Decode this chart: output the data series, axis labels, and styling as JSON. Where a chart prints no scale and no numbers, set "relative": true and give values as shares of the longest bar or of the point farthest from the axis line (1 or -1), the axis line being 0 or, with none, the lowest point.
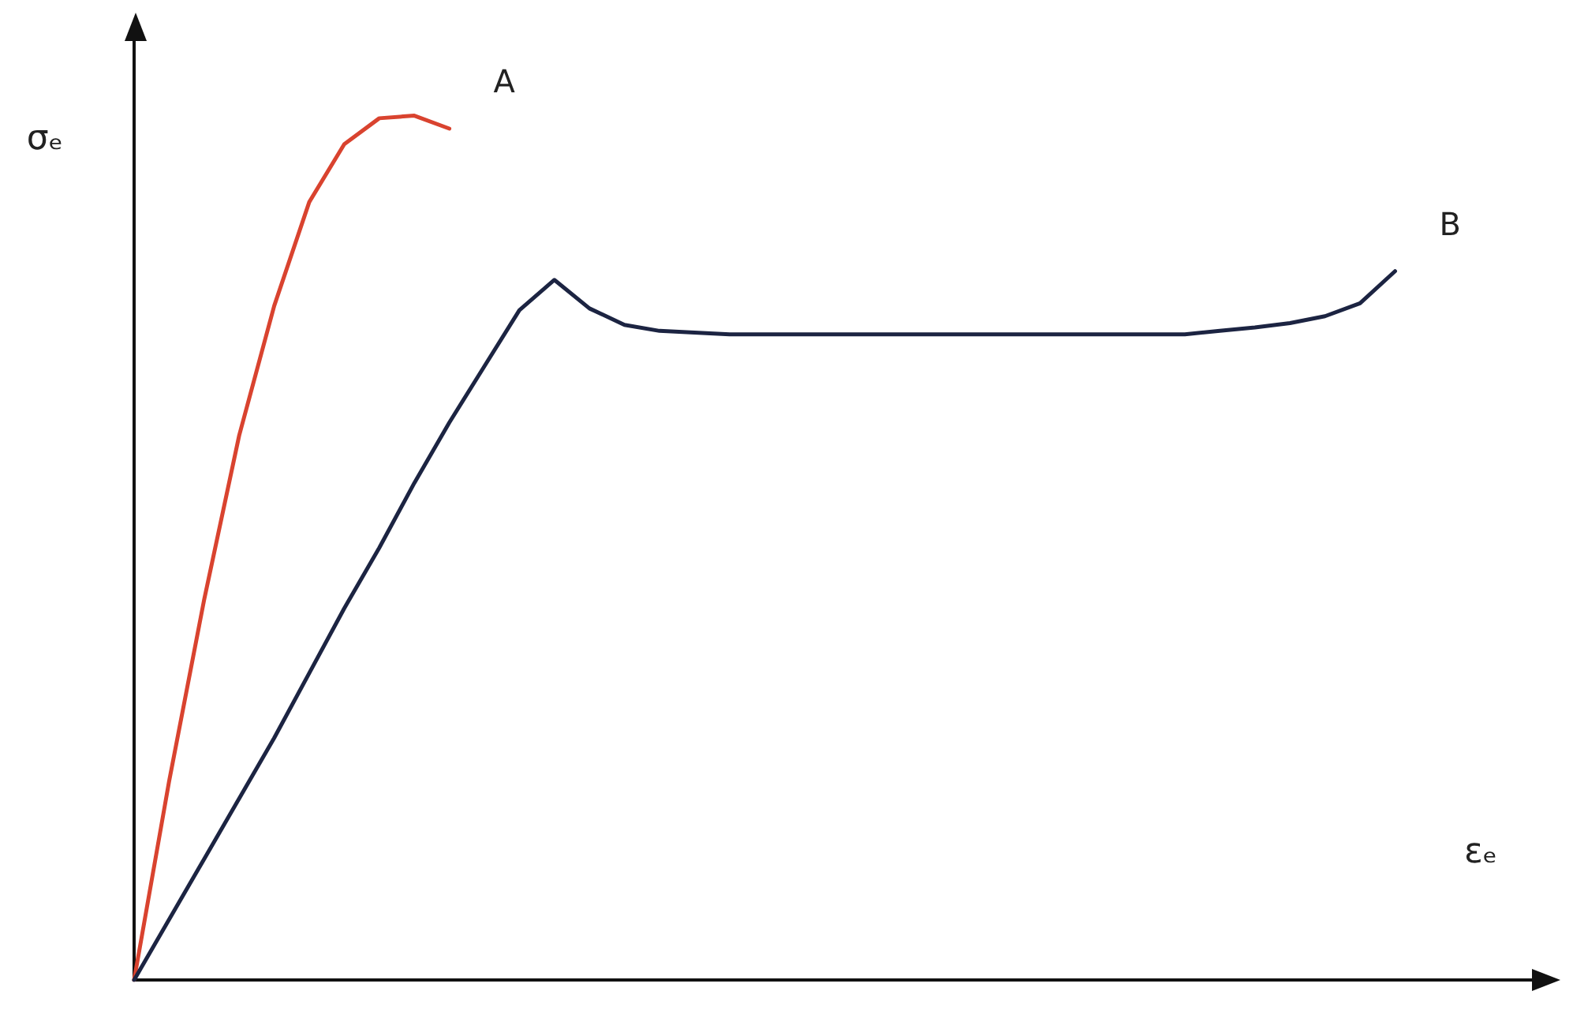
{
  "chart_data": {
    "type": "line",
    "relative": true,
    "xlabel": "εₑ",
    "ylabel": "σₑ",
    "grid": false,
    "legend": false,
    "marker": "none",
    "line_style": "solid",
    "categories": [
      null,
      null,
      null,
      null,
      null,
      null,
      null,
      null,
      null,
      null,
      null,
      null,
      null,
      null,
      null,
      null,
      null,
      null,
      null,
      null,
      null,
      null,
      null,
      null,
      null,
      null,
      null,
      null,
      null,
      null,
      null,
      null,
      null,
      null,
      null,
      null,
      null,
      null,
      null,
      null,
      null
    ],
    "series": [
      {
        "name": "A",
        "color": "#d9432f",
        "values": [
          0,
          0.23,
          0.44,
          0.63,
          0.78,
          0.9,
          0.967,
          0.997,
          1,
          0.985,
          null,
          null,
          null,
          null,
          null,
          null,
          null,
          null,
          null,
          null,
          null,
          null,
          null,
          null,
          null,
          null,
          null,
          null,
          null,
          null,
          null,
          null,
          null,
          null,
          null,
          null,
          null,
          null,
          null,
          null,
          null
        ]
      },
      {
        "name": "B",
        "color": "#1c2442",
        "values": [
          0,
          0.07,
          0.14,
          0.21,
          0.28,
          0.355,
          0.43,
          0.5,
          0.575,
          0.645,
          0.71,
          0.775,
          0.81,
          0.777,
          0.758,
          0.751,
          0.749,
          0.747,
          0.747,
          0.747,
          0.747,
          0.747,
          0.747,
          0.747,
          0.747,
          0.747,
          0.747,
          0.747,
          0.747,
          0.747,
          0.747,
          0.751,
          0.755,
          0.76,
          0.768,
          0.783,
          0.82,
          null,
          null,
          null,
          null
        ]
      }
    ]
  }
}
